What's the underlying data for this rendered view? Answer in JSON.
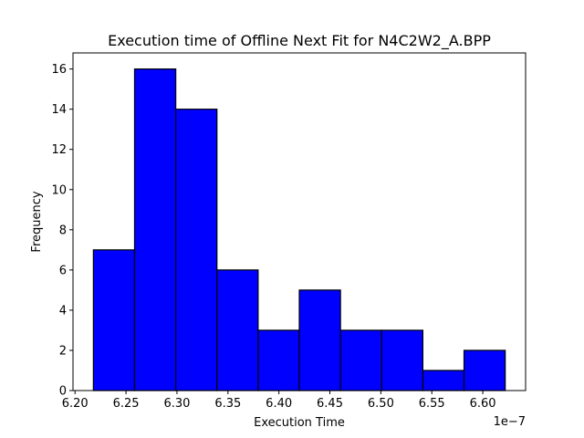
{
  "chart_data": {
    "type": "bar",
    "title": "Execution time of Offline Next Fit for N4C2W2_A.BPP",
    "xlabel": "Execution Time",
    "ylabel": "Frequency",
    "x_offset_label": "1e−7",
    "bin_edges": [
      6.218,
      6.2584,
      6.2988,
      6.3392,
      6.3796,
      6.42,
      6.4604,
      6.5008,
      6.5412,
      6.5816,
      6.622
    ],
    "values": [
      7,
      16,
      14,
      6,
      3,
      5,
      3,
      3,
      1,
      2
    ],
    "xlim": [
      6.198,
      6.642
    ],
    "ylim": [
      0,
      16.8
    ],
    "x_ticks": [
      6.2,
      6.25,
      6.3,
      6.35,
      6.4,
      6.45,
      6.5,
      6.55,
      6.6
    ],
    "x_tick_labels": [
      "6.20",
      "6.25",
      "6.30",
      "6.35",
      "6.40",
      "6.45",
      "6.50",
      "6.55",
      "6.60"
    ],
    "y_ticks": [
      0,
      2,
      4,
      6,
      8,
      10,
      12,
      14,
      16
    ],
    "y_tick_labels": [
      "0",
      "2",
      "4",
      "6",
      "8",
      "10",
      "12",
      "14",
      "16"
    ],
    "bar_color": "#0000ff",
    "edge_color": "#000000",
    "grid": false,
    "legend": "none"
  }
}
